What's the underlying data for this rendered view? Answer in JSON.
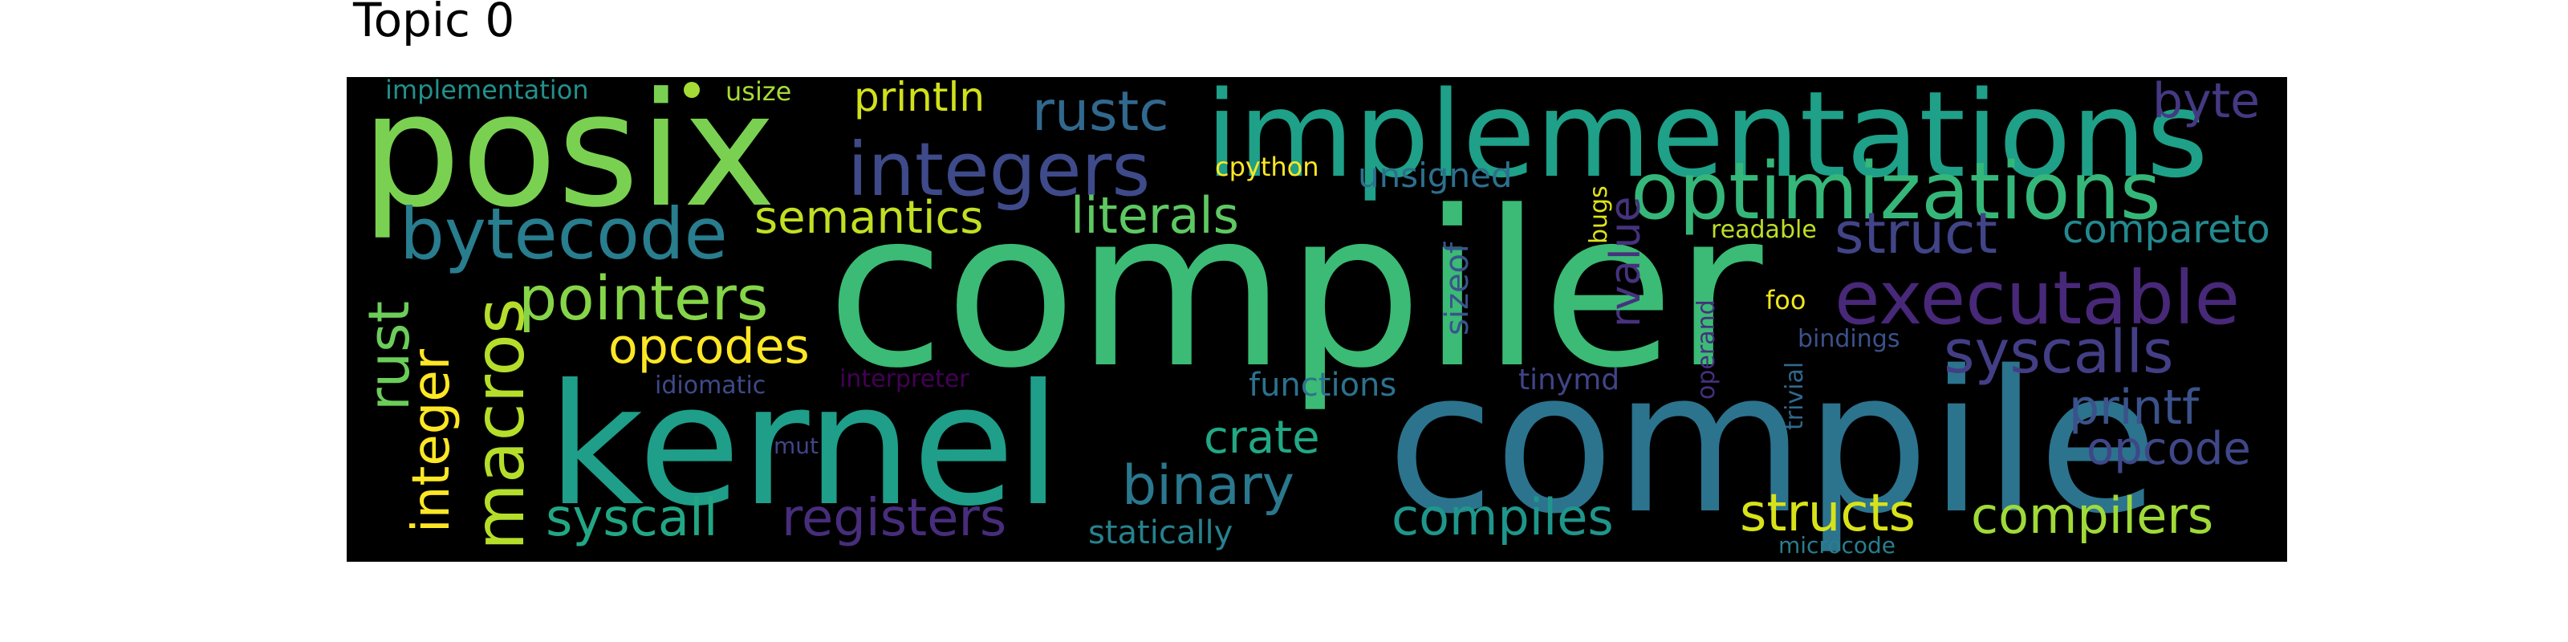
{
  "title": "Topic 0",
  "words": [
    {
      "text": "compiler",
      "color": "#3bbb75"
    },
    {
      "text": "compile",
      "color": "#2c738e"
    },
    {
      "text": "kernel",
      "color": "#1f9e89"
    },
    {
      "text": "posix",
      "color": "#7ad151"
    },
    {
      "text": "implementations",
      "color": "#1fa088"
    },
    {
      "text": "integers",
      "color": "#3e4a89"
    },
    {
      "text": "optimizations",
      "color": "#35b779"
    },
    {
      "text": "executable",
      "color": "#482878"
    },
    {
      "text": "bytecode",
      "color": "#287d8e"
    },
    {
      "text": "macros",
      "color": "#b5de2b"
    },
    {
      "text": "pointers",
      "color": "#86d549"
    },
    {
      "text": "struct",
      "color": "#414487"
    },
    {
      "text": "syscalls",
      "color": "#433e85"
    },
    {
      "text": "integer",
      "color": "#fde725"
    },
    {
      "text": "rust",
      "color": "#6ccd5a"
    },
    {
      "text": "literals",
      "color": "#5ec962"
    },
    {
      "text": "rustc",
      "color": "#31688e"
    },
    {
      "text": "semantics",
      "color": "#c2df23"
    },
    {
      "text": "opcodes",
      "color": "#fde725"
    },
    {
      "text": "binary",
      "color": "#2a788e"
    },
    {
      "text": "crate",
      "color": "#22a884"
    },
    {
      "text": "printf",
      "color": "#3b528b"
    },
    {
      "text": "opcode",
      "color": "#3f4788"
    },
    {
      "text": "syscall",
      "color": "#22a785"
    },
    {
      "text": "registers",
      "color": "#472d7b"
    },
    {
      "text": "compiles",
      "color": "#1f968b"
    },
    {
      "text": "structs",
      "color": "#d8e219"
    },
    {
      "text": "compilers",
      "color": "#a0da39"
    },
    {
      "text": "byte",
      "color": "#443983"
    },
    {
      "text": "compareto",
      "color": "#23898e"
    },
    {
      "text": "rvalue",
      "color": "#46327e"
    },
    {
      "text": "println",
      "color": "#d0e11c"
    },
    {
      "text": "unsigned",
      "color": "#2d708e"
    },
    {
      "text": "sizeof",
      "color": "#3a548c"
    },
    {
      "text": "functions",
      "color": "#2c728e"
    },
    {
      "text": "statically",
      "color": "#26828e"
    },
    {
      "text": "tinymd",
      "color": "#414487"
    },
    {
      "text": "cpython",
      "color": "#fde725"
    },
    {
      "text": "bugs",
      "color": "#dfe318"
    },
    {
      "text": "readable",
      "color": "#bddf26"
    },
    {
      "text": "usize",
      "color": "#a5db36"
    },
    {
      "text": "implementation",
      "color": "#21918c"
    },
    {
      "text": "foo",
      "color": "#f1e51d"
    },
    {
      "text": "bindings",
      "color": "#3b528b"
    },
    {
      "text": "operand",
      "color": "#46307e"
    },
    {
      "text": "trivial",
      "color": "#31688e"
    },
    {
      "text": "idiomatic",
      "color": "#3e4a89"
    },
    {
      "text": "interpreter",
      "color": "#440154"
    },
    {
      "text": "mut",
      "color": "#404688"
    },
    {
      "text": "microcode",
      "color": "#277f8e"
    }
  ]
}
